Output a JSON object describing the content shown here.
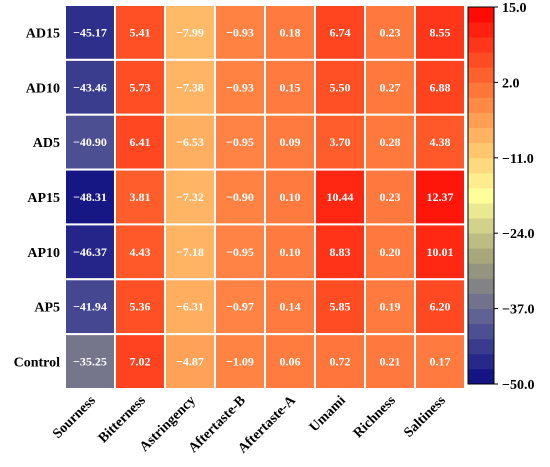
{
  "chart_data": {
    "type": "heatmap",
    "rows": [
      "AD15",
      "AD10",
      "AD5",
      "AP15",
      "AP10",
      "AP5",
      "Control"
    ],
    "columns": [
      "Sourness",
      "Bitterness",
      "Astringency",
      "Aftertaste-B",
      "Aftertaste-A",
      "Umami",
      "Richness",
      "Saltiness"
    ],
    "values": [
      [
        -45.17,
        5.41,
        -7.99,
        -0.93,
        0.18,
        6.74,
        0.23,
        8.55
      ],
      [
        -43.46,
        5.73,
        -7.38,
        -0.93,
        0.15,
        5.5,
        0.27,
        6.88
      ],
      [
        -40.9,
        6.41,
        -6.53,
        -0.95,
        0.09,
        3.7,
        0.28,
        4.38
      ],
      [
        -48.31,
        3.81,
        -7.32,
        -0.9,
        0.1,
        10.44,
        0.23,
        12.37
      ],
      [
        -46.37,
        4.43,
        -7.18,
        -0.95,
        0.1,
        8.83,
        0.2,
        10.01
      ],
      [
        -41.94,
        5.36,
        -6.31,
        -0.97,
        0.14,
        5.85,
        0.19,
        6.2
      ],
      [
        -35.25,
        7.02,
        -4.87,
        -1.09,
        0.06,
        0.72,
        0.21,
        0.17
      ]
    ],
    "value_labels": [
      [
        "−45.17",
        "5.41",
        "−7.99",
        "−0.93",
        "0.18",
        "6.74",
        "0.23",
        "8.55"
      ],
      [
        "−43.46",
        "5.73",
        "−7.38",
        "−0.93",
        "0.15",
        "5.50",
        "0.27",
        "6.88"
      ],
      [
        "−40.90",
        "6.41",
        "−6.53",
        "−0.95",
        "0.09",
        "3.70",
        "0.28",
        "4.38"
      ],
      [
        "−48.31",
        "3.81",
        "−7.32",
        "−0.90",
        "0.10",
        "10.44",
        "0.23",
        "12.37"
      ],
      [
        "−46.37",
        "4.43",
        "−7.18",
        "−0.95",
        "0.10",
        "8.83",
        "0.20",
        "10.01"
      ],
      [
        "−41.94",
        "5.36",
        "−6.31",
        "−0.97",
        "0.14",
        "5.85",
        "0.19",
        "6.20"
      ],
      [
        "−35.25",
        "7.02",
        "−4.87",
        "−1.09",
        "0.06",
        "0.72",
        "0.21",
        "0.17"
      ]
    ],
    "colorbar": {
      "range": [
        -50.0,
        15.0
      ],
      "ticks": [
        15.0,
        2.0,
        -11.0,
        -24.0,
        -37.0,
        -50.0
      ],
      "tick_labels": [
        "15.0",
        "2.0",
        "−11.0",
        "−24.0",
        "−37.0",
        "−50.0"
      ],
      "colors": [
        "#0a0a82",
        "#5a5c96",
        "#a4a27a",
        "#ffff9a",
        "#ffb060",
        "#ff5a2a",
        "#ff0000"
      ],
      "placement": "right"
    },
    "title": "",
    "xlabel": "",
    "ylabel": ""
  }
}
